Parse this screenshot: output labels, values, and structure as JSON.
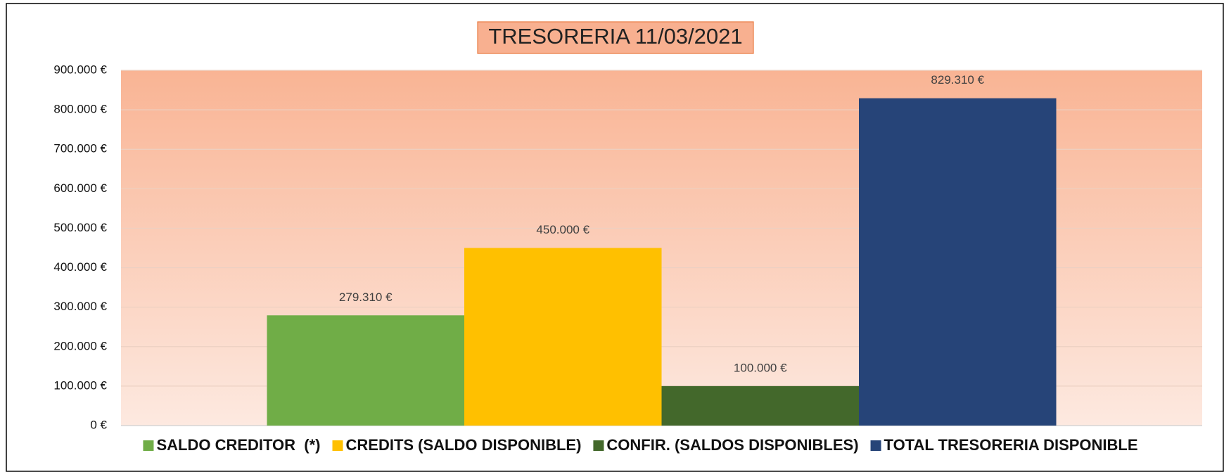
{
  "chart_data": {
    "type": "bar",
    "title": "TRESORERIA 11/03/2021",
    "categories": [
      null
    ],
    "series": [
      {
        "name": "SALDO CREDITOR  (*)",
        "color": "#70ad47",
        "values": [
          279310
        ],
        "value_labels": [
          "279.310 €"
        ]
      },
      {
        "name": "CREDITS (SALDO DISPONIBLE)",
        "color": "#ffc000",
        "values": [
          450000
        ],
        "value_labels": [
          "450.000 €"
        ]
      },
      {
        "name": "CONFIR. (SALDOS DISPONIBLES)",
        "color": "#43682b",
        "values": [
          100000
        ],
        "value_labels": [
          "100.000 €"
        ]
      },
      {
        "name": "TOTAL TRESORERIA DISPONIBLE",
        "color": "#264478",
        "values": [
          829310
        ],
        "value_labels": [
          "829.310 €"
        ]
      }
    ],
    "ylim": [
      0,
      900000
    ],
    "yticks": [
      {
        "value": 0,
        "label": "0 €"
      },
      {
        "value": 100000,
        "label": "100.000 €"
      },
      {
        "value": 200000,
        "label": "200.000 €"
      },
      {
        "value": 300000,
        "label": "300.000 €"
      },
      {
        "value": 400000,
        "label": "400.000 €"
      },
      {
        "value": 500000,
        "label": "500.000 €"
      },
      {
        "value": 600000,
        "label": "600.000 €"
      },
      {
        "value": 700000,
        "label": "700.000 €"
      },
      {
        "value": 800000,
        "label": "800.000 €"
      },
      {
        "value": 900000,
        "label": "900.000 €"
      }
    ],
    "grid": true,
    "legend": "bottom"
  }
}
